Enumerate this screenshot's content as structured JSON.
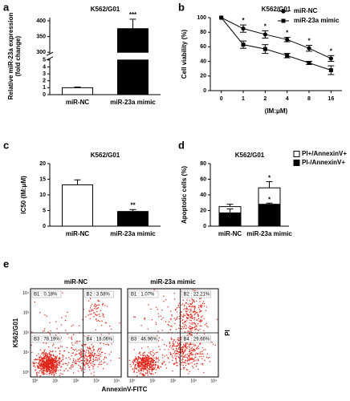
{
  "chart_data": [
    {
      "type": "bar",
      "panel": "a",
      "title": "K562/G01",
      "ylabel": [
        "Relative miR-23a expression",
        "(fold change)"
      ],
      "categories": [
        "miR-NC",
        "miR-23a mimic"
      ],
      "values": [
        1,
        375
      ],
      "errors": [
        0.1,
        30
      ],
      "colors": [
        "#ffffff",
        "#000000"
      ],
      "sig": [
        null,
        "***"
      ],
      "ylim": [
        0,
        410
      ],
      "ybreak": [
        5,
        300
      ],
      "yticks": [
        0,
        1,
        2,
        3,
        4,
        5,
        300,
        350,
        400
      ]
    },
    {
      "type": "line",
      "panel": "b",
      "title": "K562/G01",
      "ylabel": "Cell viability (%)",
      "xlabel": "(IM:μM)",
      "categories": [
        "0",
        "1",
        "2",
        "4",
        "8",
        "16"
      ],
      "series": [
        {
          "name": "miR-NC",
          "marker": "circle",
          "color": "#000000",
          "values": [
            100,
            85,
            77,
            70,
            58,
            44
          ],
          "errors": [
            0,
            5,
            5,
            3,
            4,
            4
          ]
        },
        {
          "name": "miR-23a mimic",
          "marker": "square",
          "color": "#000000",
          "values": [
            100,
            63,
            57,
            48,
            38,
            28
          ],
          "errors": [
            0,
            5,
            6,
            3,
            2,
            6
          ]
        }
      ],
      "sig": [
        null,
        "*",
        "*",
        "*",
        "*",
        "*"
      ],
      "ylim": [
        0,
        100
      ],
      "yticks": [
        0,
        20,
        40,
        60,
        80,
        100
      ],
      "legend": "upper right"
    },
    {
      "type": "bar",
      "panel": "c",
      "title": "K562/G01",
      "ylabel": "IC50 (IM:μM)",
      "categories": [
        "miR-NC",
        "miR-23a mimic"
      ],
      "values": [
        13.2,
        4.7
      ],
      "errors": [
        1.6,
        0.6
      ],
      "colors": [
        "#ffffff",
        "#000000"
      ],
      "sig": [
        null,
        "**"
      ],
      "ylim": [
        0,
        20
      ],
      "yticks": [
        0,
        5,
        10,
        15,
        20
      ]
    },
    {
      "type": "stacked_bar",
      "panel": "d",
      "title": "K562/G01",
      "ylabel": "Apoptotic cells (%)",
      "categories": [
        "miR-NC",
        "miR-23a mimic"
      ],
      "series": [
        {
          "name": "PI-/AnnexinV+",
          "color": "#000000",
          "values": [
            17,
            28
          ],
          "errors": [
            5,
            1.5
          ],
          "sig": [
            null,
            "*"
          ]
        },
        {
          "name": "PI+/AnnexinV+",
          "color": "#ffffff",
          "values": [
            8,
            21
          ],
          "errors": [
            3,
            8
          ],
          "sig": [
            null,
            "*"
          ]
        }
      ],
      "ylim": [
        0,
        80
      ],
      "yticks": [
        0,
        20,
        40,
        60,
        80
      ],
      "legend": "upper right"
    },
    {
      "type": "flow",
      "panel": "e",
      "ylabel": "K562/G01",
      "xlabel": "AnnexinV-FITC",
      "y2label": "PI",
      "xticks": [
        "10⁰",
        "10¹",
        "10²",
        "10³",
        "10⁴"
      ],
      "yticks": [
        "10⁰",
        "10¹",
        "10²",
        "10³",
        "10⁴"
      ],
      "plots": [
        {
          "title": "miR-NC",
          "quadrants": [
            "B1 : 0.18%",
            "B2 : 3.58%",
            "B3 : 78.19%",
            "B4 : 18.06%"
          ]
        },
        {
          "title": "miR-23a mimic",
          "quadrants": [
            "B1 : 1.07%",
            "B2 : 22.21%",
            "B3 : 46.96%",
            "B4 : 29.66%"
          ]
        }
      ]
    }
  ]
}
